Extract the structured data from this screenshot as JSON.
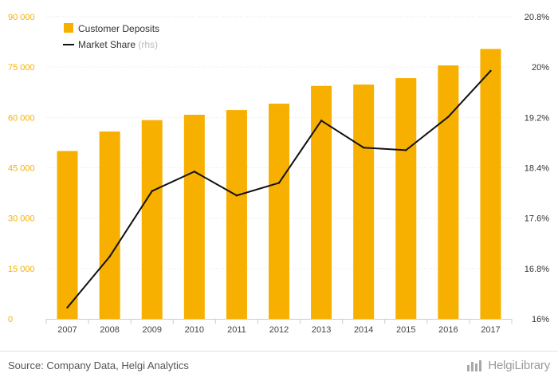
{
  "chart_data": {
    "type": "bar",
    "categories": [
      "2007",
      "2008",
      "2009",
      "2010",
      "2011",
      "2012",
      "2013",
      "2014",
      "2015",
      "2016",
      "2017"
    ],
    "series": [
      {
        "name": "Customer Deposits",
        "type": "bar",
        "axis": "left",
        "color": "#f7b000",
        "values": [
          50000,
          55800,
          59200,
          60800,
          62200,
          64100,
          69400,
          69800,
          71700,
          75500,
          80400
        ]
      },
      {
        "name": "Market Share",
        "type": "line",
        "axis": "right",
        "color": "#111111",
        "values": [
          16.18,
          16.99,
          18.03,
          18.34,
          17.96,
          18.16,
          19.15,
          18.72,
          18.68,
          19.21,
          19.94
        ]
      }
    ],
    "y_left": {
      "ylim": [
        0,
        90000
      ],
      "ticks": [
        0,
        15000,
        30000,
        45000,
        60000,
        75000,
        90000
      ],
      "tick_labels": [
        "0",
        "15 000",
        "30 000",
        "45 000",
        "60 000",
        "75 000",
        "90 000"
      ],
      "color": "#f7b000"
    },
    "y_right": {
      "ylim": [
        16,
        20.8
      ],
      "ticks": [
        16,
        16.8,
        17.6,
        18.4,
        19.2,
        20,
        20.8
      ],
      "tick_labels": [
        "16%",
        "16.8%",
        "17.6%",
        "18.4%",
        "19.2%",
        "20%",
        "20.8%"
      ],
      "color": "#333333"
    },
    "grid": true,
    "legend": {
      "placement": "top-left",
      "items": [
        {
          "label": "Customer Deposits",
          "suffix": "",
          "marker": "square"
        },
        {
          "label": "Market Share",
          "suffix": "(rhs)",
          "marker": "line"
        }
      ]
    },
    "title": "",
    "xlabel": "",
    "ylabel": ""
  },
  "footer": {
    "source": "Source: Company Data, Helgi Analytics",
    "brand": "HelgiLibrary",
    "brand_icon": "helgi-logo-icon"
  }
}
